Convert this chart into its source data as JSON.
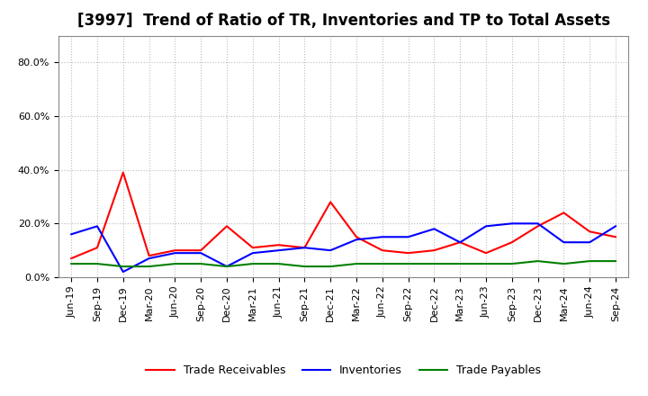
{
  "title": "[3997]  Trend of Ratio of TR, Inventories and TP to Total Assets",
  "x_labels": [
    "Jun-19",
    "Sep-19",
    "Dec-19",
    "Mar-20",
    "Jun-20",
    "Sep-20",
    "Dec-20",
    "Mar-21",
    "Jun-21",
    "Sep-21",
    "Dec-21",
    "Mar-22",
    "Jun-22",
    "Sep-22",
    "Dec-22",
    "Mar-23",
    "Jun-23",
    "Sep-23",
    "Dec-23",
    "Mar-24",
    "Jun-24",
    "Sep-24"
  ],
  "trade_receivables": [
    0.07,
    0.11,
    0.39,
    0.08,
    0.1,
    0.1,
    0.19,
    0.11,
    0.12,
    0.11,
    0.28,
    0.15,
    0.1,
    0.09,
    0.1,
    0.13,
    0.09,
    0.13,
    0.19,
    0.24,
    0.17,
    0.15
  ],
  "inventories": [
    0.16,
    0.19,
    0.02,
    0.07,
    0.09,
    0.09,
    0.04,
    0.09,
    0.1,
    0.11,
    0.1,
    0.14,
    0.15,
    0.15,
    0.18,
    0.13,
    0.19,
    0.2,
    0.2,
    0.13,
    0.13,
    0.19
  ],
  "trade_payables": [
    0.05,
    0.05,
    0.04,
    0.04,
    0.05,
    0.05,
    0.04,
    0.05,
    0.05,
    0.04,
    0.04,
    0.05,
    0.05,
    0.05,
    0.05,
    0.05,
    0.05,
    0.05,
    0.06,
    0.05,
    0.06,
    0.06
  ],
  "tr_color": "#ff0000",
  "inv_color": "#0000ff",
  "tp_color": "#008000",
  "ylim": [
    0.0,
    0.9
  ],
  "yticks": [
    0.0,
    0.2,
    0.4,
    0.6,
    0.8
  ],
  "ytick_labels": [
    "0.0%",
    "20.0%",
    "40.0%",
    "60.0%",
    "80.0%"
  ],
  "legend_labels": [
    "Trade Receivables",
    "Inventories",
    "Trade Payables"
  ],
  "background_color": "#ffffff",
  "grid_color": "#bbbbbb",
  "title_fontsize": 12,
  "tick_fontsize": 8,
  "legend_fontsize": 9
}
